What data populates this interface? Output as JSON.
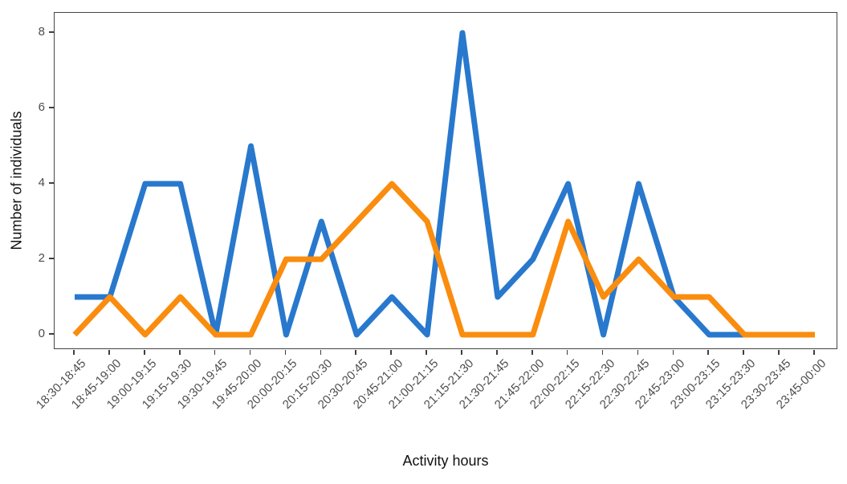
{
  "chart_data": {
    "type": "line",
    "title": "",
    "xlabel": "Activity hours",
    "ylabel": "Number of individuals",
    "categories": [
      "18:30-18:45",
      "18:45-19:00",
      "19:00-19:15",
      "19:15-19:30",
      "19:30-19:45",
      "19:45-20:00",
      "20:00-20:15",
      "20:15-20:30",
      "20:30-20:45",
      "20:45-21:00",
      "21:00-21:15",
      "21:15-21:30",
      "21:30-21:45",
      "21:45-22:00",
      "22:00-22:15",
      "22:15-22:30",
      "22:30-22:45",
      "22:45-23:00",
      "23:00-23:15",
      "23:15-23:30",
      "23:30-23:45",
      "23:45-00:00"
    ],
    "series": [
      {
        "name": "blue-series",
        "color": "#2878CD",
        "values": [
          1,
          1,
          4,
          4,
          0,
          5,
          0,
          3,
          0,
          1,
          0,
          8,
          1,
          2,
          4,
          0,
          4,
          1,
          0,
          0,
          null,
          null
        ]
      },
      {
        "name": "orange-series",
        "color": "#FA8C0E",
        "values": [
          0,
          1,
          0,
          1,
          0,
          0,
          2,
          2,
          3,
          4,
          3,
          0,
          0,
          0,
          3,
          1,
          2,
          1,
          1,
          0,
          0,
          0
        ]
      }
    ],
    "yticks": [
      0,
      2,
      4,
      6,
      8
    ],
    "ylim": [
      0,
      8
    ],
    "grid": false,
    "legend_position": "none",
    "panel_border_color": "#454545",
    "tick_label_color": "#4d4d4d",
    "axis_title_color": "#111111"
  }
}
